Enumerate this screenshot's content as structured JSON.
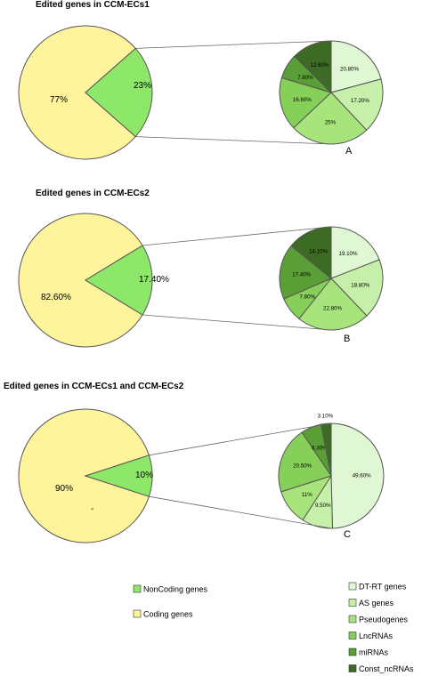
{
  "chart_data": [
    {
      "type": "pie",
      "title": "Edited genes in CCM-ECs1",
      "panel": "A",
      "main": {
        "slices": [
          {
            "label": "77%",
            "value": 77,
            "category": "Coding genes",
            "color": "#fdf49c"
          },
          {
            "label": "23%",
            "value": 23,
            "category": "NonCoding genes",
            "color": "#8de86a"
          }
        ]
      },
      "sub": {
        "slices": [
          {
            "label": "20.80%",
            "value": 20.8,
            "category": "DT-RT genes",
            "color": "#dff7d2"
          },
          {
            "label": "17.20%",
            "value": 17.2,
            "category": "AS genes",
            "color": "#c6f0aa"
          },
          {
            "label": "25%",
            "value": 25,
            "category": "Pseudogenes",
            "color": "#a8e47c"
          },
          {
            "label": "16.60%",
            "value": 16.6,
            "category": "LncRNAs",
            "color": "#86cf58"
          },
          {
            "label": "7.80%",
            "value": 7.8,
            "category": "miRNAs",
            "color": "#5a9e36"
          },
          {
            "label": "12.60%",
            "value": 12.6,
            "category": "Const_ncRNAs",
            "color": "#3d6b25"
          }
        ]
      }
    },
    {
      "type": "pie",
      "title": "Edited genes in CCM-ECs2",
      "panel": "B",
      "main": {
        "slices": [
          {
            "label": "82.60%",
            "value": 82.6,
            "category": "Coding genes",
            "color": "#fdf49c"
          },
          {
            "label": "17.40%",
            "value": 17.4,
            "category": "NonCoding genes",
            "color": "#8de86a"
          }
        ]
      },
      "sub": {
        "slices": [
          {
            "label": "19.10%",
            "value": 19.1,
            "category": "DT-RT genes",
            "color": "#dff7d2"
          },
          {
            "label": "18.80%",
            "value": 18.8,
            "category": "AS genes",
            "color": "#c6f0aa"
          },
          {
            "label": "22.80%",
            "value": 22.8,
            "category": "Pseudogenes",
            "color": "#a8e47c"
          },
          {
            "label": "7.80%",
            "value": 7.8,
            "category": "LncRNAs",
            "color": "#86cf58"
          },
          {
            "label": "17.40%",
            "value": 17.4,
            "category": "miRNAs",
            "color": "#5a9e36"
          },
          {
            "label": "14.10%",
            "value": 14.1,
            "category": "Const_ncRNAs",
            "color": "#3d6b25"
          }
        ]
      }
    },
    {
      "type": "pie",
      "title": "Edited genes in CCM-ECs1 and CCM-ECs2",
      "panel": "C",
      "main": {
        "slices": [
          {
            "label": "90%",
            "value": 90,
            "category": "Coding genes",
            "color": "#fdf49c"
          },
          {
            "label": "10%",
            "value": 10,
            "category": "NonCoding genes",
            "color": "#8de86a"
          }
        ],
        "extra_text": "-"
      },
      "sub": {
        "slices": [
          {
            "label": "49.60%",
            "value": 49.6,
            "category": "DT-RT genes",
            "color": "#dff7d2"
          },
          {
            "label": "9.50%",
            "value": 9.5,
            "category": "AS genes",
            "color": "#c6f0aa"
          },
          {
            "label": "11%",
            "value": 11,
            "category": "Pseudogenes",
            "color": "#a8e47c"
          },
          {
            "label": "20.50%",
            "value": 20.5,
            "category": "LncRNAs",
            "color": "#86cf58"
          },
          {
            "label": "6.30%",
            "value": 6.3,
            "category": "miRNAs",
            "color": "#5a9e36"
          },
          {
            "label": "3.10%",
            "value": 3.1,
            "category": "Const_ncRNAs",
            "color": "#3d6b25"
          }
        ]
      }
    }
  ],
  "legend": {
    "main": [
      {
        "label": "NonCoding genes",
        "color": "#8de86a"
      },
      {
        "label": "Coding genes",
        "color": "#fdf49c"
      }
    ],
    "sub": [
      {
        "label": "DT-RT genes",
        "color": "#dff7d2"
      },
      {
        "label": "AS genes",
        "color": "#c6f0aa"
      },
      {
        "label": "Pseudogenes",
        "color": "#a8e47c"
      },
      {
        "label": "LncRNAs",
        "color": "#86cf58"
      },
      {
        "label": "miRNAs",
        "color": "#5a9e36"
      },
      {
        "label": "Const_ncRNAs",
        "color": "#3d6b25"
      }
    ]
  }
}
